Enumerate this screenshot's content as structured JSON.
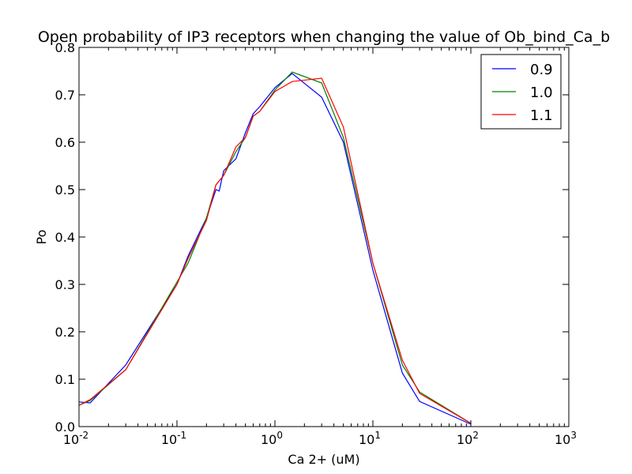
{
  "chart_data": {
    "type": "line",
    "title": "Open probability of IP3 receptors when changing the value of Ob_bind_Ca_b",
    "xlabel": "Ca 2+ (uM)",
    "ylabel": "Po",
    "xscale": "log",
    "xlim": [
      0.01,
      1000
    ],
    "ylim": [
      0.0,
      0.8
    ],
    "x_ticks": [
      {
        "base": "10",
        "exp": "-2",
        "value": 0.01
      },
      {
        "base": "10",
        "exp": "-1",
        "value": 0.1
      },
      {
        "base": "10",
        "exp": "0",
        "value": 1
      },
      {
        "base": "10",
        "exp": "1",
        "value": 10
      },
      {
        "base": "10",
        "exp": "2",
        "value": 100
      },
      {
        "base": "10",
        "exp": "3",
        "value": 1000
      }
    ],
    "y_ticks": [
      "0.0",
      "0.1",
      "0.2",
      "0.3",
      "0.4",
      "0.5",
      "0.6",
      "0.7",
      "0.8"
    ],
    "grid": false,
    "legend_position": "top-right",
    "series": [
      {
        "name": "0.9",
        "color": "#0000ff",
        "x": [
          0.01,
          0.013,
          0.03,
          0.1,
          0.13,
          0.2,
          0.25,
          0.27,
          0.3,
          0.4,
          0.5,
          0.6,
          0.7,
          1.0,
          1.5,
          3.0,
          5.0,
          10.0,
          20.0,
          30.0,
          100.0
        ],
        "y": [
          0.052,
          0.05,
          0.13,
          0.3,
          0.36,
          0.44,
          0.5,
          0.497,
          0.54,
          0.565,
          0.62,
          0.66,
          0.675,
          0.715,
          0.745,
          0.695,
          0.6,
          0.33,
          0.113,
          0.053,
          0.005
        ]
      },
      {
        "name": "1.0",
        "color": "#008000",
        "x": [
          0.01,
          0.013,
          0.03,
          0.1,
          0.13,
          0.2,
          0.25,
          0.3,
          0.4,
          0.5,
          0.6,
          0.7,
          1.0,
          1.5,
          3.0,
          5.0,
          10.0,
          20.0,
          30.0,
          100.0
        ],
        "y": [
          0.045,
          0.055,
          0.12,
          0.305,
          0.345,
          0.44,
          0.51,
          0.53,
          0.58,
          0.61,
          0.655,
          0.665,
          0.71,
          0.748,
          0.725,
          0.61,
          0.345,
          0.13,
          0.073,
          0.007
        ]
      },
      {
        "name": "1.1",
        "color": "#ff0000",
        "x": [
          0.01,
          0.013,
          0.03,
          0.1,
          0.13,
          0.2,
          0.25,
          0.3,
          0.4,
          0.5,
          0.6,
          0.7,
          1.0,
          1.5,
          3.0,
          5.0,
          10.0,
          20.0,
          30.0,
          100.0
        ],
        "y": [
          0.045,
          0.057,
          0.12,
          0.3,
          0.355,
          0.435,
          0.51,
          0.53,
          0.59,
          0.61,
          0.655,
          0.665,
          0.707,
          0.728,
          0.735,
          0.632,
          0.345,
          0.14,
          0.07,
          0.007
        ]
      }
    ]
  }
}
